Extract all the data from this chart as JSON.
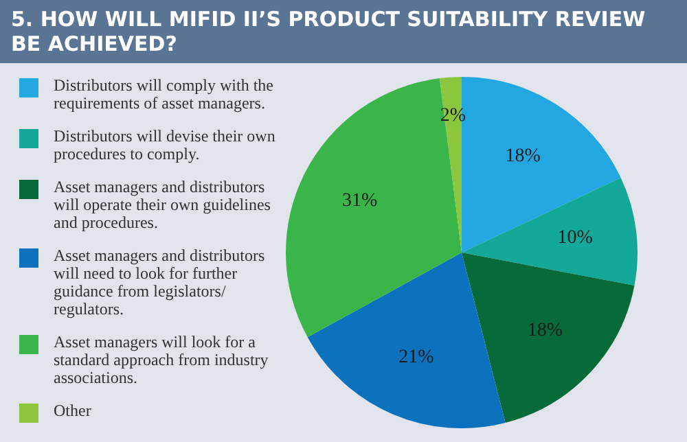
{
  "chart_data": {
    "type": "pie",
    "title": "5. HOW WILL MIFID II’S PRODUCT SUITABILITY REVIEW BE ACHIEVED?",
    "categories": [
      "Distributors will comply with the requirements of asset managers.",
      "Distributors will devise their own procedures to comply.",
      "Asset managers and distributors will operate their own guidelines and procedures.",
      "Asset managers and distributors will need to look for further guidance from legislators/ regulators.",
      "Asset managers will look for a standard approach from industry associations.",
      "Other"
    ],
    "values": [
      18,
      10,
      18,
      21,
      31,
      2
    ],
    "value_labels": [
      "18%",
      "10%",
      "18%",
      "21%",
      "31%",
      "2%"
    ],
    "colors": [
      "#22a7e0",
      "#14a899",
      "#066b38",
      "#0d72bd",
      "#3ab54a",
      "#8cc63f"
    ],
    "legend": "left"
  }
}
